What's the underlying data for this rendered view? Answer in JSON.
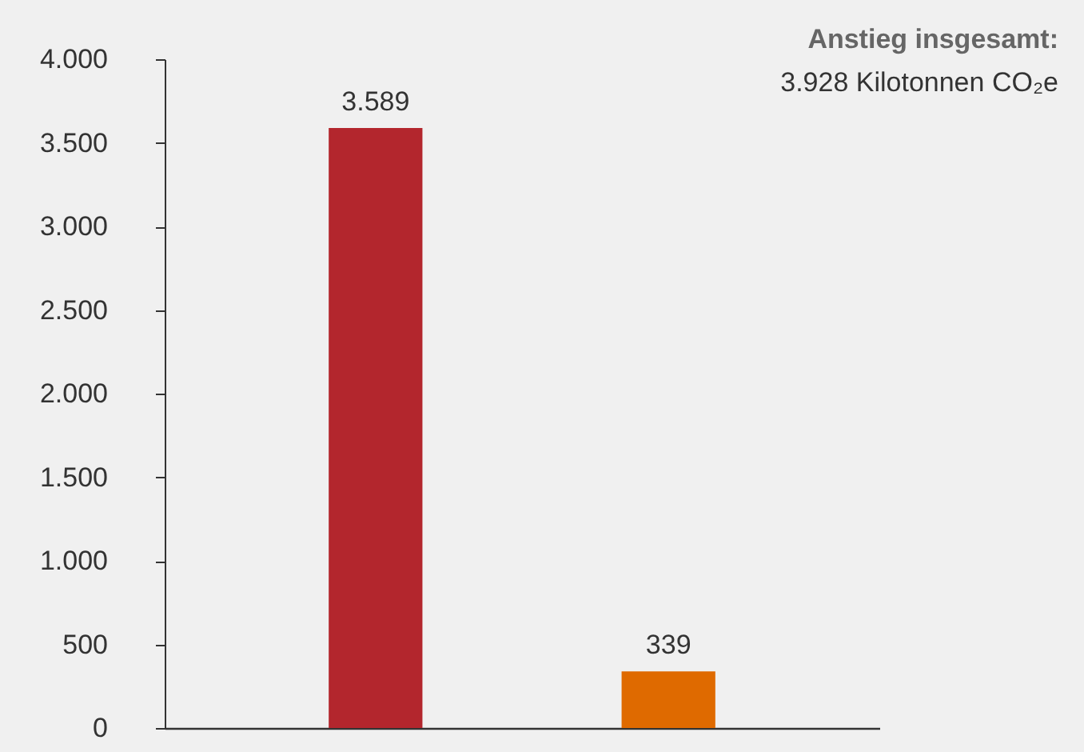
{
  "chart_data": {
    "type": "bar",
    "categories": [
      null,
      null
    ],
    "values": [
      3589,
      339
    ],
    "colors": [
      "#b3262d",
      "#df6a00"
    ],
    "value_labels": [
      "3.589",
      "339"
    ],
    "ylim": [
      0,
      4000
    ],
    "yticks": [
      {
        "value": 0,
        "label": "0"
      },
      {
        "value": 500,
        "label": "500"
      },
      {
        "value": 1000,
        "label": "1.000"
      },
      {
        "value": 1500,
        "label": "1.500"
      },
      {
        "value": 2000,
        "label": "2.000"
      },
      {
        "value": 2500,
        "label": "2.500"
      },
      {
        "value": 3000,
        "label": "3.000"
      },
      {
        "value": 3500,
        "label": "3.500"
      },
      {
        "value": 4000,
        "label": "4.000"
      }
    ],
    "annotations": [
      "Anstieg insgesamt:",
      "3.928 Kilotonnen CO₂e"
    ],
    "grid": false,
    "tick_labels": "y"
  }
}
